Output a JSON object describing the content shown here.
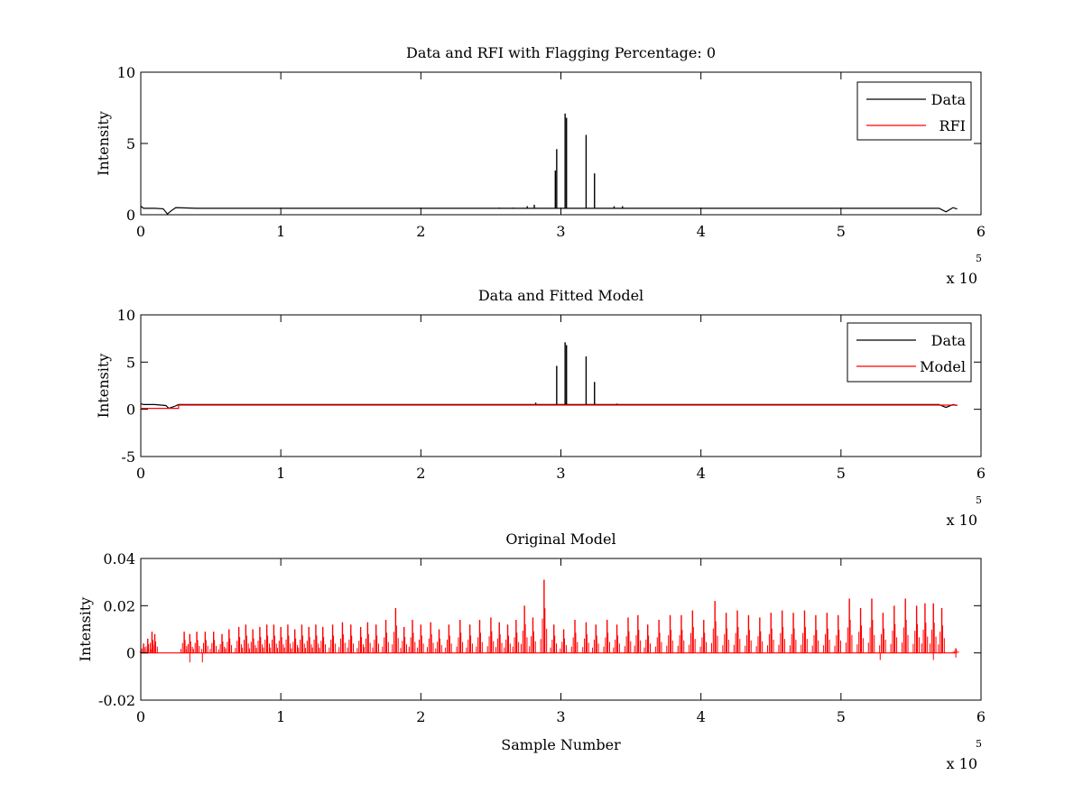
{
  "figure": {
    "background": "#ffffff"
  },
  "chart_data": [
    {
      "type": "line",
      "title": "Data and RFI with Flagging Percentage: 0",
      "xlabel": "",
      "ylabel": "Intensity",
      "xlim": [
        0,
        6
      ],
      "ylim": [
        0,
        10
      ],
      "xticks": [
        0,
        1,
        2,
        3,
        4,
        5,
        6
      ],
      "yticks": [
        0,
        5,
        10
      ],
      "x_multiplier": "x 10",
      "x_multiplier_exp": "5",
      "legend": {
        "placement": "top-right"
      },
      "grid": false,
      "series": [
        {
          "name": "Data",
          "color": "#000000",
          "baseline": [
            [
              0,
              0.6
            ],
            [
              0.02,
              0.45
            ],
            [
              0.05,
              0.45
            ],
            [
              0.1,
              0.45
            ],
            [
              0.16,
              0.42
            ],
            [
              0.19,
              0.05
            ],
            [
              0.22,
              0.3
            ],
            [
              0.25,
              0.5
            ],
            [
              0.4,
              0.45
            ],
            [
              1.0,
              0.45
            ],
            [
              2.0,
              0.45
            ],
            [
              2.9,
              0.45
            ],
            [
              3.3,
              0.45
            ],
            [
              4.0,
              0.45
            ],
            [
              5.0,
              0.45
            ],
            [
              5.7,
              0.45
            ],
            [
              5.75,
              0.2
            ],
            [
              5.8,
              0.5
            ],
            [
              5.83,
              0.4
            ]
          ],
          "spikes": [
            [
              2.96,
              3.1
            ],
            [
              2.97,
              4.6
            ],
            [
              3.03,
              7.1
            ],
            [
              3.04,
              6.8
            ],
            [
              3.18,
              5.6
            ],
            [
              3.24,
              2.9
            ],
            [
              2.81,
              0.7
            ],
            [
              2.76,
              0.6
            ],
            [
              2.66,
              0.5
            ],
            [
              2.56,
              0.5
            ],
            [
              3.38,
              0.6
            ],
            [
              3.44,
              0.6
            ]
          ]
        },
        {
          "name": "RFI",
          "color": "#ff0000",
          "baseline": [],
          "spikes": []
        }
      ]
    },
    {
      "type": "line",
      "title": "Data and Fitted Model",
      "xlabel": "",
      "ylabel": "Intensity",
      "xlim": [
        0,
        6
      ],
      "ylim": [
        -5,
        10
      ],
      "xticks": [
        0,
        1,
        2,
        3,
        4,
        5,
        6
      ],
      "yticks": [
        -5,
        0,
        5,
        10
      ],
      "x_multiplier": "x 10",
      "x_multiplier_exp": "5",
      "legend": {
        "placement": "top-right"
      },
      "grid": false,
      "series": [
        {
          "name": "Data",
          "color": "#000000",
          "baseline": [
            [
              0,
              0.6
            ],
            [
              0.02,
              0.5
            ],
            [
              0.1,
              0.5
            ],
            [
              0.18,
              0.4
            ],
            [
              0.2,
              0.1
            ],
            [
              0.24,
              0.3
            ],
            [
              0.27,
              0.5
            ],
            [
              1.0,
              0.5
            ],
            [
              2.0,
              0.5
            ],
            [
              3.0,
              0.5
            ],
            [
              4.0,
              0.5
            ],
            [
              5.0,
              0.5
            ],
            [
              5.7,
              0.5
            ],
            [
              5.75,
              0.2
            ],
            [
              5.8,
              0.5
            ],
            [
              5.83,
              0.4
            ]
          ],
          "spikes": [
            [
              2.97,
              4.6
            ],
            [
              3.03,
              7.1
            ],
            [
              3.04,
              6.8
            ],
            [
              3.18,
              5.6
            ],
            [
              3.24,
              2.9
            ],
            [
              2.82,
              0.7
            ],
            [
              3.4,
              0.6
            ]
          ]
        },
        {
          "name": "Model",
          "color": "#ff0000",
          "baseline": [
            [
              0,
              0.1
            ],
            [
              0.27,
              0.1
            ],
            [
              0.27,
              0.45
            ],
            [
              1.0,
              0.45
            ],
            [
              2.0,
              0.45
            ],
            [
              3.0,
              0.45
            ],
            [
              4.0,
              0.45
            ],
            [
              5.0,
              0.45
            ],
            [
              5.83,
              0.45
            ]
          ],
          "spikes": []
        }
      ]
    },
    {
      "type": "line",
      "title": "Original Model",
      "xlabel": "Sample Number",
      "ylabel": "Intensity",
      "xlim": [
        0,
        6
      ],
      "ylim": [
        -0.02,
        0.04
      ],
      "xticks": [
        0,
        1,
        2,
        3,
        4,
        5,
        6
      ],
      "yticks": [
        -0.02,
        0,
        0.02,
        0.04
      ],
      "ytick_labels": [
        "-0.02",
        "0",
        "0.02",
        "0.04"
      ],
      "x_multiplier": "x 10",
      "x_multiplier_exp": "5",
      "legend": null,
      "grid": false,
      "series": [
        {
          "name": "",
          "color": "#ff0000",
          "baseline": [
            [
              0,
              0
            ],
            [
              5.83,
              0
            ]
          ],
          "spikes": [
            [
              0.02,
              0.004
            ],
            [
              0.05,
              0.006
            ],
            [
              0.08,
              0.009
            ],
            [
              0.1,
              0.008
            ],
            [
              0.31,
              0.009
            ],
            [
              0.35,
              0.008
            ],
            [
              0.4,
              0.009
            ],
            [
              0.46,
              0.009
            ],
            [
              0.52,
              0.009
            ],
            [
              0.58,
              0.008
            ],
            [
              0.63,
              0.01
            ],
            [
              0.7,
              0.011
            ],
            [
              0.75,
              0.012
            ],
            [
              0.8,
              0.01
            ],
            [
              0.85,
              0.011
            ],
            [
              0.9,
              0.012
            ],
            [
              0.95,
              0.012
            ],
            [
              1.0,
              0.011
            ],
            [
              1.05,
              0.012
            ],
            [
              1.1,
              0.01
            ],
            [
              1.15,
              0.012
            ],
            [
              1.2,
              0.011
            ],
            [
              1.25,
              0.012
            ],
            [
              1.3,
              0.011
            ],
            [
              1.37,
              0.012
            ],
            [
              1.44,
              0.013
            ],
            [
              1.5,
              0.012
            ],
            [
              1.57,
              0.011
            ],
            [
              1.62,
              0.013
            ],
            [
              1.68,
              0.012
            ],
            [
              1.75,
              0.014
            ],
            [
              1.82,
              0.019
            ],
            [
              1.88,
              0.011
            ],
            [
              1.94,
              0.014
            ],
            [
              2.0,
              0.012
            ],
            [
              2.07,
              0.013
            ],
            [
              2.13,
              0.01
            ],
            [
              2.2,
              0.012
            ],
            [
              2.28,
              0.014
            ],
            [
              2.35,
              0.012
            ],
            [
              2.42,
              0.014
            ],
            [
              2.5,
              0.015
            ],
            [
              2.56,
              0.013
            ],
            [
              2.62,
              0.012
            ],
            [
              2.68,
              0.014
            ],
            [
              2.74,
              0.02
            ],
            [
              2.8,
              0.015
            ],
            [
              2.88,
              0.031
            ],
            [
              2.95,
              0.012
            ],
            [
              3.02,
              0.01
            ],
            [
              3.1,
              0.014
            ],
            [
              3.18,
              0.013
            ],
            [
              3.25,
              0.012
            ],
            [
              3.33,
              0.014
            ],
            [
              3.4,
              0.012
            ],
            [
              3.48,
              0.015
            ],
            [
              3.55,
              0.016
            ],
            [
              3.62,
              0.012
            ],
            [
              3.7,
              0.014
            ],
            [
              3.78,
              0.016
            ],
            [
              3.86,
              0.016
            ],
            [
              3.94,
              0.018
            ],
            [
              4.02,
              0.014
            ],
            [
              4.1,
              0.022
            ],
            [
              4.18,
              0.017
            ],
            [
              4.26,
              0.018
            ],
            [
              4.34,
              0.016
            ],
            [
              4.42,
              0.015
            ],
            [
              4.5,
              0.017
            ],
            [
              4.58,
              0.018
            ],
            [
              4.66,
              0.017
            ],
            [
              4.74,
              0.018
            ],
            [
              4.82,
              0.016
            ],
            [
              4.9,
              0.017
            ],
            [
              4.98,
              0.016
            ],
            [
              5.06,
              0.023
            ],
            [
              5.14,
              0.019
            ],
            [
              5.22,
              0.023
            ],
            [
              5.3,
              0.017
            ],
            [
              5.38,
              0.02
            ],
            [
              5.46,
              0.023
            ],
            [
              5.54,
              0.02
            ],
            [
              5.6,
              0.021
            ],
            [
              5.66,
              0.021
            ],
            [
              5.72,
              0.019
            ],
            [
              5.82,
              0.002
            ]
          ],
          "dips": [
            [
              0.35,
              -0.004
            ],
            [
              0.44,
              -0.004
            ],
            [
              5.28,
              -0.003
            ],
            [
              5.66,
              -0.003
            ],
            [
              5.82,
              -0.002
            ]
          ]
        }
      ]
    }
  ]
}
